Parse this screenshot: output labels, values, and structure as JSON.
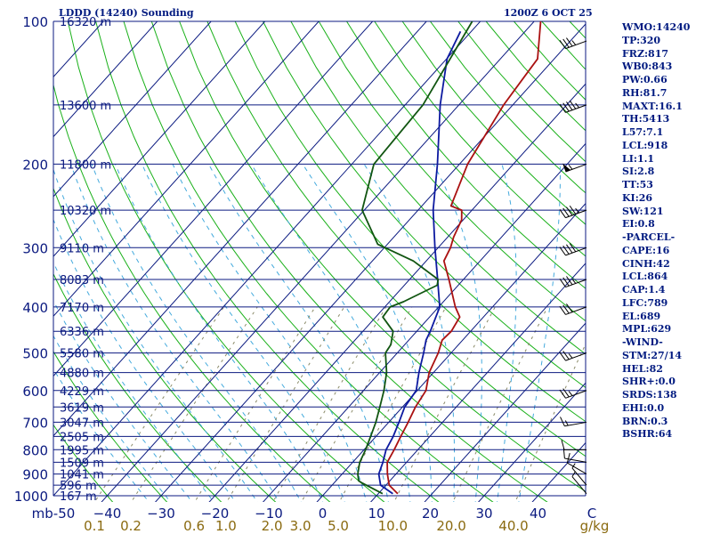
{
  "header": {
    "title": "LDDD (14240) Sounding",
    "valid": "1200Z  6 OCT 25"
  },
  "indices": [
    "WMO:14240",
    "TP:320",
    "FRZ:817",
    "WB0:843",
    "PW:0.66",
    "RH:81.7",
    "MAXT:16.1",
    "TH:5413",
    "L57:7.1",
    "LCL:918",
    "LI:1.1",
    "SI:2.8",
    "TT:53",
    "KI:26",
    "SW:121",
    "EI:0.8",
    "-PARCEL-",
    "CAPE:16",
    "CINH:42",
    "LCL:864",
    "CAP:1.4",
    "LFC:789",
    "EL:689",
    "MPL:629",
    "-WIND-",
    "STM:27/14",
    "HEL:82",
    "SHR+:0.0",
    "SRDS:138",
    "EHI:0.0",
    "BRN:0.3",
    "BSHR:64"
  ],
  "chart_data": {
    "type": "skew-t log-p sounding",
    "title": "LDDD (14240) Sounding",
    "ylabel": "mb",
    "xlabel": "C",
    "mixing_ratio_unit": "g/kg",
    "p_range_mb": [
      1000,
      100
    ],
    "t_range_c": [
      -50,
      50
    ],
    "pressure_ticks": [
      {
        "p": 100,
        "label": "100"
      },
      {
        "p": 200,
        "label": "200"
      },
      {
        "p": 300,
        "label": "300"
      },
      {
        "p": 400,
        "label": "400"
      },
      {
        "p": 500,
        "label": "500"
      },
      {
        "p": 600,
        "label": "600"
      },
      {
        "p": 700,
        "label": "700"
      },
      {
        "p": 800,
        "label": "800"
      },
      {
        "p": 900,
        "label": "900"
      },
      {
        "p": 1000,
        "label": "1000"
      }
    ],
    "height_labels": [
      {
        "p": 100,
        "label": "16320 m"
      },
      {
        "p": 150,
        "label": "13600 m"
      },
      {
        "p": 200,
        "label": "11800 m"
      },
      {
        "p": 250,
        "label": "10320 m"
      },
      {
        "p": 300,
        "label": "9110 m"
      },
      {
        "p": 350,
        "label": "8083 m"
      },
      {
        "p": 400,
        "label": "7170 m"
      },
      {
        "p": 450,
        "label": "6336 m"
      },
      {
        "p": 500,
        "label": "5580 m"
      },
      {
        "p": 550,
        "label": "4880 m"
      },
      {
        "p": 600,
        "label": "4229 m"
      },
      {
        "p": 650,
        "label": "3619 m"
      },
      {
        "p": 700,
        "label": "3047 m"
      },
      {
        "p": 750,
        "label": "2505 m"
      },
      {
        "p": 800,
        "label": "1995 m"
      },
      {
        "p": 850,
        "label": "1509 m"
      },
      {
        "p": 900,
        "label": "1041 m"
      },
      {
        "p": 950,
        "label": "596 m"
      },
      {
        "p": 1000,
        "label": "167 m"
      }
    ],
    "temp_ticks": [
      {
        "t": -50,
        "label": "mb-50"
      },
      {
        "t": -40,
        "label": "−40"
      },
      {
        "t": -30,
        "label": "−30"
      },
      {
        "t": -20,
        "label": "−20"
      },
      {
        "t": -10,
        "label": "−10"
      },
      {
        "t": 0,
        "label": "0"
      },
      {
        "t": 10,
        "label": "10"
      },
      {
        "t": 20,
        "label": "20"
      },
      {
        "t": 30,
        "label": "30"
      },
      {
        "t": 40,
        "label": "40"
      },
      {
        "t": 50,
        "label": "C"
      }
    ],
    "mixing_ratio_labels": [
      {
        "w": 0.1,
        "label": "0.1"
      },
      {
        "w": 0.2,
        "label": "0.2"
      },
      {
        "w": 0.6,
        "label": "0.6"
      },
      {
        "w": 1.0,
        "label": "1.0"
      },
      {
        "w": 2.0,
        "label": "2.0"
      },
      {
        "w": 3.0,
        "label": "3.0"
      },
      {
        "w": 5.0,
        "label": "5.0"
      },
      {
        "w": 10.0,
        "label": "10.0"
      },
      {
        "w": 20.0,
        "label": "20.0"
      },
      {
        "w": 40.0,
        "label": "40.0"
      },
      {
        "w": 0,
        "label": "g/kg"
      }
    ],
    "temperature": [
      {
        "p": 990,
        "t": 13.6
      },
      {
        "p": 950,
        "t": 10.6
      },
      {
        "p": 900,
        "t": 8.4
      },
      {
        "p": 850,
        "t": 6.4
      },
      {
        "p": 800,
        "t": 5.6
      },
      {
        "p": 750,
        "t": 4.6
      },
      {
        "p": 700,
        "t": 3.6
      },
      {
        "p": 650,
        "t": 2.4
      },
      {
        "p": 600,
        "t": 1.6
      },
      {
        "p": 550,
        "t": -0.8
      },
      {
        "p": 500,
        "t": -2.4
      },
      {
        "p": 470,
        "t": -3.8
      },
      {
        "p": 450,
        "t": -3.6
      },
      {
        "p": 420,
        "t": -4.4
      },
      {
        "p": 400,
        "t": -6.9
      },
      {
        "p": 350,
        "t": -12.7
      },
      {
        "p": 320,
        "t": -16.7
      },
      {
        "p": 300,
        "t": -17.7
      },
      {
        "p": 285,
        "t": -18.9
      },
      {
        "p": 262,
        "t": -20.3
      },
      {
        "p": 250,
        "t": -21.9
      },
      {
        "p": 245,
        "t": -24.6
      },
      {
        "p": 200,
        "t": -28.5
      },
      {
        "p": 150,
        "t": -31.7
      },
      {
        "p": 130,
        "t": -32.6
      },
      {
        "p": 120,
        "t": -33.1
      },
      {
        "p": 100,
        "t": -38.8
      }
    ],
    "dewpoint": [
      {
        "p": 990,
        "t": 12.7
      },
      {
        "p": 950,
        "t": 9.0
      },
      {
        "p": 900,
        "t": 6.8
      },
      {
        "p": 850,
        "t": 5.6
      },
      {
        "p": 800,
        "t": 4.1
      },
      {
        "p": 750,
        "t": 3.2
      },
      {
        "p": 700,
        "t": 1.9
      },
      {
        "p": 650,
        "t": 0.4
      },
      {
        "p": 600,
        "t": -0.2
      },
      {
        "p": 550,
        "t": -2.7
      },
      {
        "p": 500,
        "t": -5.1
      },
      {
        "p": 470,
        "t": -6.8
      },
      {
        "p": 450,
        "t": -7.5
      },
      {
        "p": 400,
        "t": -9.8
      },
      {
        "p": 350,
        "t": -14.8
      },
      {
        "p": 300,
        "t": -20.6
      },
      {
        "p": 250,
        "t": -27.2
      },
      {
        "p": 200,
        "t": -34.1
      },
      {
        "p": 150,
        "t": -43.5
      },
      {
        "p": 120,
        "t": -49.9
      },
      {
        "p": 105,
        "t": -52.0
      }
    ],
    "parcel_path": [
      {
        "p": 990,
        "t": 10.8
      },
      {
        "p": 940,
        "t": 5.2
      },
      {
        "p": 930,
        "t": 4.2
      },
      {
        "p": 900,
        "t": 2.9
      },
      {
        "p": 850,
        "t": 1.3
      },
      {
        "p": 800,
        "t": 0.3
      },
      {
        "p": 750,
        "t": -1.0
      },
      {
        "p": 700,
        "t": -2.4
      },
      {
        "p": 650,
        "t": -4.2
      },
      {
        "p": 600,
        "t": -6.2
      },
      {
        "p": 550,
        "t": -8.7
      },
      {
        "p": 500,
        "t": -12.2
      },
      {
        "p": 480,
        "t": -12.6
      },
      {
        "p": 450,
        "t": -14.4
      },
      {
        "p": 420,
        "t": -18.7
      },
      {
        "p": 400,
        "t": -19.0
      },
      {
        "p": 390,
        "t": -17.4
      },
      {
        "p": 360,
        "t": -13.9
      },
      {
        "p": 350,
        "t": -14.7
      },
      {
        "p": 320,
        "t": -22.4
      },
      {
        "p": 295,
        "t": -31.8
      },
      {
        "p": 250,
        "t": -40.4
      },
      {
        "p": 200,
        "t": -45.9
      },
      {
        "p": 150,
        "t": -46.7
      },
      {
        "p": 100,
        "t": -51.5
      }
    ],
    "wind_barbs": [
      {
        "p": 990,
        "dir": 320,
        "speed_kt": 5
      },
      {
        "p": 950,
        "dir": 320,
        "speed_kt": 5
      },
      {
        "p": 900,
        "dir": 300,
        "speed_kt": 10
      },
      {
        "p": 850,
        "dir": 280,
        "speed_kt": 10
      },
      {
        "p": 800,
        "dir": 270,
        "speed_kt": 10
      },
      {
        "p": 700,
        "dir": 260,
        "speed_kt": 15
      },
      {
        "p": 600,
        "dir": 250,
        "speed_kt": 25
      },
      {
        "p": 500,
        "dir": 250,
        "speed_kt": 25
      },
      {
        "p": 400,
        "dir": 250,
        "speed_kt": 30
      },
      {
        "p": 350,
        "dir": 250,
        "speed_kt": 35
      },
      {
        "p": 300,
        "dir": 250,
        "speed_kt": 40
      },
      {
        "p": 250,
        "dir": 250,
        "speed_kt": 45
      },
      {
        "p": 200,
        "dir": 250,
        "speed_kt": 55
      },
      {
        "p": 150,
        "dir": 250,
        "speed_kt": 45
      },
      {
        "p": 110,
        "dir": 250,
        "speed_kt": 35
      }
    ],
    "colors": {
      "isobars": "#0b1a80",
      "isotherms": "#0b1a80",
      "dry_adiabats": "#19b019",
      "moist_adiabats": "#44aadd",
      "mixing_ratio": "#8a8a68",
      "temperature": "#aa1111",
      "dewpoint": "#115511",
      "parcel": "#0d1aa0",
      "wind_barbs": "#000000",
      "axis_text": "#0b1a80",
      "mixing_text": "#8a6a10"
    }
  }
}
